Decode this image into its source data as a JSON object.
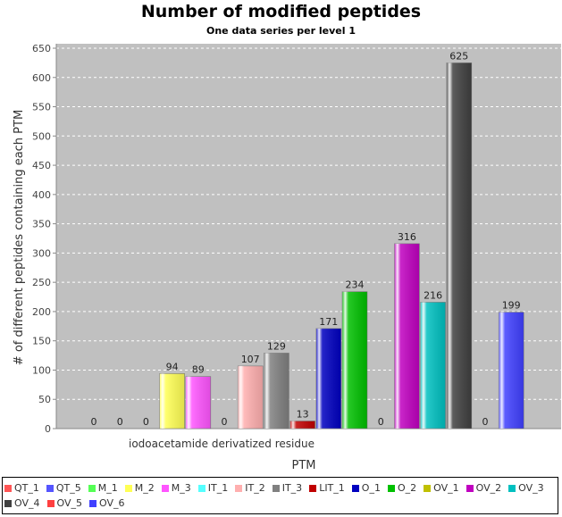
{
  "chart_data": {
    "type": "bar",
    "title": "Number of modified peptides",
    "subtitle": "One data series per level 1",
    "xlabel": "PTM",
    "ylabel": "# of different peptides containing each PTM",
    "categories": [
      "iodoacetamide derivatized residue"
    ],
    "ylim": [
      0,
      650
    ],
    "yticks": [
      0,
      50,
      100,
      150,
      200,
      250,
      300,
      350,
      400,
      450,
      500,
      550,
      600,
      650
    ],
    "grid": true,
    "legend_position": "bottom",
    "series": [
      {
        "name": "QT_1",
        "values": [
          0
        ],
        "color": "#ff5555"
      },
      {
        "name": "QT_5",
        "values": [
          0
        ],
        "color": "#5555ff"
      },
      {
        "name": "M_1",
        "values": [
          0
        ],
        "color": "#55ff55"
      },
      {
        "name": "M_2",
        "values": [
          94
        ],
        "color": "#ffff55"
      },
      {
        "name": "M_3",
        "values": [
          89
        ],
        "color": "#ff55ff"
      },
      {
        "name": "IT_1",
        "values": [
          0
        ],
        "color": "#55ffff"
      },
      {
        "name": "IT_2",
        "values": [
          107
        ],
        "color": "#ffafaf"
      },
      {
        "name": "IT_3",
        "values": [
          129
        ],
        "color": "#808080"
      },
      {
        "name": "LIT_1",
        "values": [
          13
        ],
        "color": "#c00000"
      },
      {
        "name": "O_1",
        "values": [
          171
        ],
        "color": "#0000c0"
      },
      {
        "name": "O_2",
        "values": [
          234
        ],
        "color": "#00c000"
      },
      {
        "name": "OV_1",
        "values": [
          0
        ],
        "color": "#c0c000"
      },
      {
        "name": "OV_2",
        "values": [
          316
        ],
        "color": "#c000c0"
      },
      {
        "name": "OV_3",
        "values": [
          216
        ],
        "color": "#00c0c0"
      },
      {
        "name": "OV_4",
        "values": [
          625
        ],
        "color": "#404040"
      },
      {
        "name": "OV_5",
        "values": [
          0
        ],
        "color": "#ff4040"
      },
      {
        "name": "OV_6",
        "values": [
          199
        ],
        "color": "#4040ff"
      }
    ]
  }
}
